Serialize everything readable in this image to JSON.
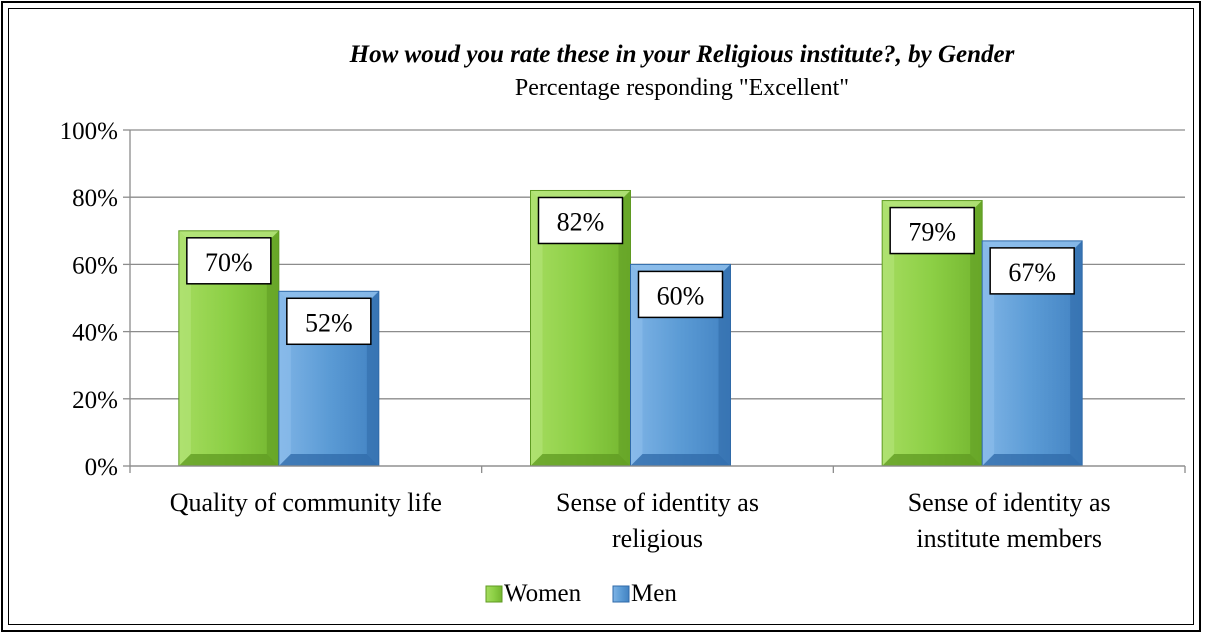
{
  "chart_data": {
    "type": "bar",
    "title": "How woud you rate these in your Religious institute?, by Gender",
    "subtitle": "Percentage responding \"Excellent\"",
    "categories": [
      [
        "Quality of community life"
      ],
      [
        "Sense of identity as",
        "religious"
      ],
      [
        "Sense of identity as",
        "institute members"
      ]
    ],
    "series": [
      {
        "name": "Women",
        "values": [
          70,
          82,
          79
        ],
        "labels": [
          "70%",
          "82%",
          "79%"
        ],
        "color": "#8ccf45",
        "dark": "#5f9a22",
        "light": "#b6e57e"
      },
      {
        "name": "Men",
        "values": [
          52,
          60,
          67
        ],
        "labels": [
          "52%",
          "60%",
          "67%"
        ],
        "color": "#5b9bd5",
        "dark": "#2f6aa8",
        "light": "#8fc0ec"
      }
    ],
    "ylim": [
      0,
      100
    ],
    "yticks": [
      "0%",
      "20%",
      "40%",
      "60%",
      "80%",
      "100%"
    ],
    "grid": true,
    "legend": "bottom"
  }
}
